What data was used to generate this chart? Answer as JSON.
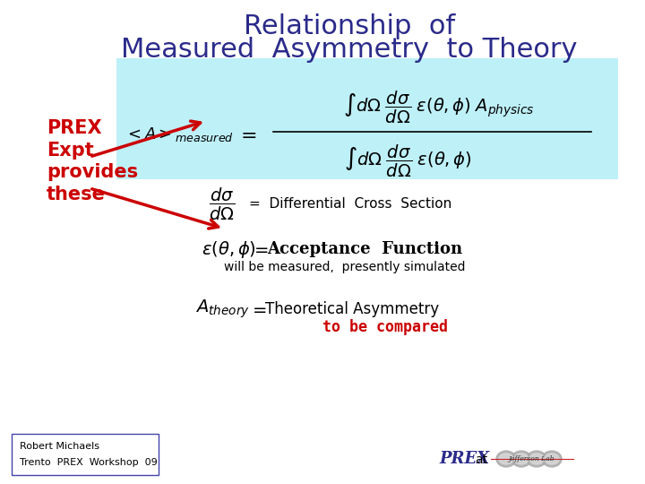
{
  "title_line1": "Relationship  of",
  "title_line2": "Measured  Asymmetry  to Theory",
  "title_color": "#2B2B8B",
  "title_fontsize": 22,
  "bg_box_color": "#BEF0F8",
  "prex_label": "PREX\nExpt\nprovides\nthese",
  "prex_color": "#CC0000",
  "diff_cross_text": "=  Differential  Cross  Section",
  "acceptance_text": "=  Acceptance  Function",
  "acceptance_sub": "will be measured,  presently simulated",
  "theory_text": "=  Theoretical Asymmetry",
  "theory_sub": "to be compared",
  "theory_sub_color": "#CC0000",
  "footer_left1": "Robert Michaels",
  "footer_left2": "Trento  PREX  Workshop  09",
  "footer_prex": "PREX",
  "footer_at": "at",
  "background_color": "#FFFFFF"
}
